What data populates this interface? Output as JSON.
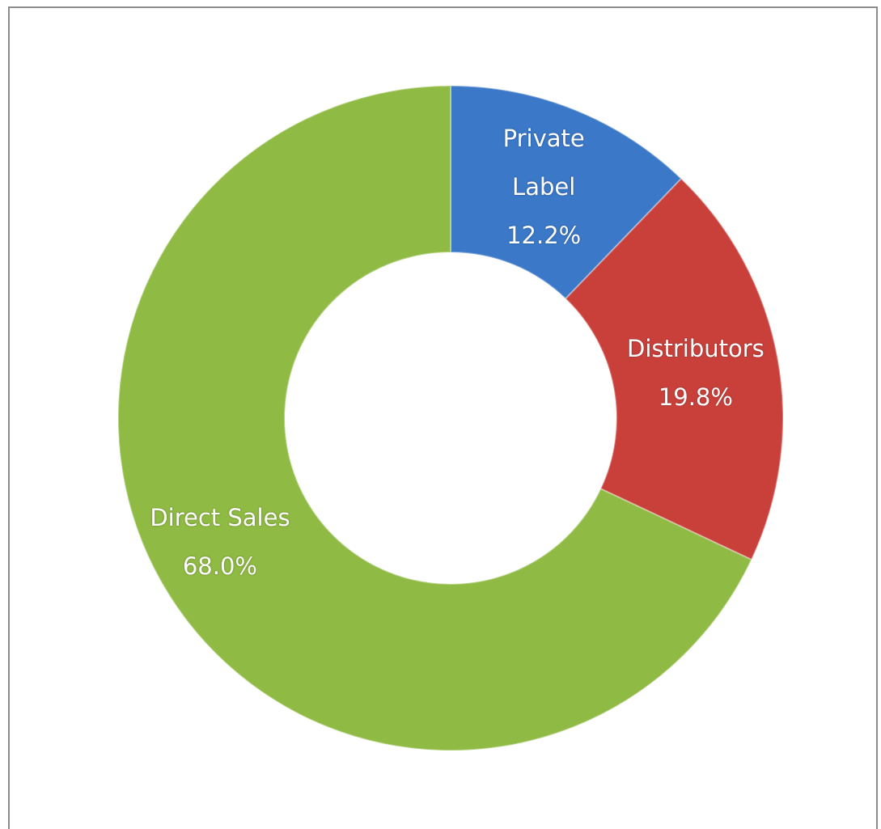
{
  "chart_data": {
    "type": "donut",
    "categories": [
      "Private Label",
      "Distributors",
      "Direct Sales"
    ],
    "values": [
      12.2,
      19.8,
      68.0
    ],
    "value_labels": [
      "12.2%",
      "19.8%",
      "68.0%"
    ],
    "colors": [
      "#3b78c8",
      "#c9403b",
      "#8fba43"
    ]
  }
}
